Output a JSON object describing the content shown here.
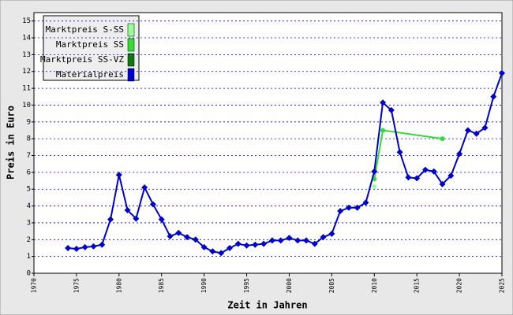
{
  "chart_data": {
    "type": "line",
    "x_label": "Zeit in Jahren",
    "y_label": "Preis in Euro",
    "xlim": [
      1970,
      2025
    ],
    "ylim": [
      0,
      15.5
    ],
    "xticks": [
      1970,
      1975,
      1980,
      1985,
      1990,
      1995,
      2000,
      2005,
      2010,
      2015,
      2020,
      2025
    ],
    "yticks": [
      0,
      1,
      2,
      3,
      4,
      5,
      6,
      7,
      8,
      9,
      10,
      11,
      12,
      13,
      14,
      15
    ],
    "grid": true,
    "legend_position": "upper left",
    "series": [
      {
        "name": "Marktpreis S-SS",
        "color": "#99ff99",
        "x": [
          2010
        ],
        "values": [
          5.15
        ]
      },
      {
        "name": "Marktpreis SS",
        "color": "#33dd33",
        "x": [
          2010,
          2011,
          2018
        ],
        "values": [
          5.6,
          8.5,
          8.0
        ]
      },
      {
        "name": "Marktpreis SS-VZ",
        "color": "#117711",
        "x": [],
        "values": []
      },
      {
        "name": "Materialpreis",
        "color": "#0000cc",
        "x": [
          1974,
          1975,
          1976,
          1977,
          1978,
          1979,
          1980,
          1981,
          1982,
          1983,
          1984,
          1985,
          1986,
          1987,
          1988,
          1989,
          1990,
          1991,
          1992,
          1993,
          1994,
          1995,
          1996,
          1997,
          1998,
          1999,
          2000,
          2001,
          2002,
          2003,
          2004,
          2005,
          2006,
          2007,
          2008,
          2009,
          2010,
          2011,
          2012,
          2013,
          2014,
          2015,
          2016,
          2017,
          2018,
          2019,
          2020,
          2021,
          2022,
          2023,
          2024,
          2025
        ],
        "values": [
          1.5,
          1.45,
          1.55,
          1.6,
          1.7,
          3.2,
          5.85,
          3.75,
          3.25,
          5.1,
          4.1,
          3.2,
          2.2,
          2.4,
          2.15,
          2.0,
          1.55,
          1.3,
          1.2,
          1.5,
          1.75,
          1.65,
          1.7,
          1.75,
          1.95,
          1.95,
          2.1,
          1.95,
          1.95,
          1.75,
          2.15,
          2.35,
          3.7,
          3.9,
          3.9,
          4.2,
          6.05,
          10.15,
          9.7,
          7.2,
          5.7,
          5.65,
          6.15,
          6.05,
          5.3,
          5.8,
          7.1,
          8.5,
          8.3,
          8.65,
          10.5,
          11.9
        ]
      }
    ]
  }
}
